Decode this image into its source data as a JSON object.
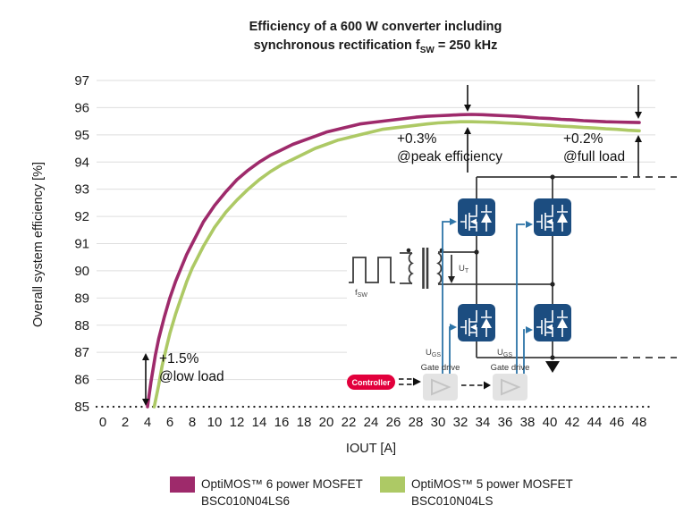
{
  "title": {
    "line1": "Efficiency of a 600 W converter including",
    "line2_pre": "synchronous rectification f",
    "line2_sub": "SW",
    "line2_post": " = 250 kHz"
  },
  "colors": {
    "optimos6": "#9E2A6B",
    "optimos5": "#ADC965",
    "mosfet_navy": "#1C4D80",
    "gate_blue": "#2E75A8",
    "controller_red": "#E2003C",
    "wire": "#3C3C3C",
    "grid": "#DEDEDE",
    "text": "#1A1A1A"
  },
  "chart_data": {
    "type": "line",
    "title": "Efficiency of a 600 W converter including synchronous rectification fSW = 250 kHz",
    "xlabel": "IOUT [A]",
    "ylabel": "Overall system efficiency [%]",
    "xlim": [
      0,
      48
    ],
    "ylim": [
      85,
      97
    ],
    "x_ticks": [
      0,
      2,
      4,
      6,
      8,
      10,
      12,
      14,
      16,
      18,
      20,
      22,
      24,
      26,
      28,
      30,
      32,
      34,
      36,
      38,
      40,
      42,
      44,
      46,
      48
    ],
    "y_ticks": [
      85,
      86,
      87,
      88,
      89,
      90,
      91,
      92,
      93,
      94,
      95,
      96,
      97
    ],
    "grid": "horizontal gridlines; dotted baseline at 85",
    "legend_position": "bottom",
    "series": [
      {
        "name": "OptiMOS™ 6 power MOSFET BSC010N04LS6",
        "color": "#9E2A6B",
        "points": [
          [
            4,
            85
          ],
          [
            4.3,
            85.9
          ],
          [
            4.7,
            86.9
          ],
          [
            5,
            87.5
          ],
          [
            5.5,
            88.3
          ],
          [
            6,
            89
          ],
          [
            6.5,
            89.6
          ],
          [
            7,
            90.1
          ],
          [
            7.5,
            90.6
          ],
          [
            8,
            91
          ],
          [
            9,
            91.8
          ],
          [
            10,
            92.4
          ],
          [
            11,
            92.9
          ],
          [
            12,
            93.35
          ],
          [
            13,
            93.7
          ],
          [
            14,
            94
          ],
          [
            15,
            94.25
          ],
          [
            16,
            94.45
          ],
          [
            17,
            94.65
          ],
          [
            18,
            94.8
          ],
          [
            19,
            94.95
          ],
          [
            20,
            95.1
          ],
          [
            21,
            95.2
          ],
          [
            22,
            95.3
          ],
          [
            23,
            95.4
          ],
          [
            24,
            95.45
          ],
          [
            25,
            95.5
          ],
          [
            26,
            95.55
          ],
          [
            27,
            95.6
          ],
          [
            28,
            95.65
          ],
          [
            29,
            95.68
          ],
          [
            30,
            95.7
          ],
          [
            31,
            95.72
          ],
          [
            32,
            95.74
          ],
          [
            33,
            95.75
          ],
          [
            34,
            95.74
          ],
          [
            35,
            95.72
          ],
          [
            36,
            95.7
          ],
          [
            37,
            95.68
          ],
          [
            38,
            95.65
          ],
          [
            39,
            95.62
          ],
          [
            40,
            95.6
          ],
          [
            41,
            95.57
          ],
          [
            42,
            95.55
          ],
          [
            43,
            95.52
          ],
          [
            44,
            95.5
          ],
          [
            45,
            95.48
          ],
          [
            46,
            95.47
          ],
          [
            47,
            95.46
          ],
          [
            48,
            95.45
          ]
        ]
      },
      {
        "name": "OptiMOS™ 5 power MOSFET BSC010N04LS",
        "color": "#ADC965",
        "points": [
          [
            4.6,
            85
          ],
          [
            5,
            85.8
          ],
          [
            5.3,
            86.5
          ],
          [
            5.7,
            87.2
          ],
          [
            6,
            87.7
          ],
          [
            6.5,
            88.4
          ],
          [
            7,
            89
          ],
          [
            7.5,
            89.6
          ],
          [
            8,
            90.1
          ],
          [
            9,
            90.9
          ],
          [
            10,
            91.6
          ],
          [
            11,
            92.15
          ],
          [
            12,
            92.6
          ],
          [
            13,
            93
          ],
          [
            14,
            93.35
          ],
          [
            15,
            93.65
          ],
          [
            16,
            93.9
          ],
          [
            17,
            94.1
          ],
          [
            18,
            94.3
          ],
          [
            19,
            94.5
          ],
          [
            20,
            94.65
          ],
          [
            21,
            94.8
          ],
          [
            22,
            94.9
          ],
          [
            23,
            95
          ],
          [
            24,
            95.1
          ],
          [
            25,
            95.2
          ],
          [
            26,
            95.25
          ],
          [
            27,
            95.3
          ],
          [
            28,
            95.35
          ],
          [
            29,
            95.4
          ],
          [
            30,
            95.44
          ],
          [
            31,
            95.46
          ],
          [
            32,
            95.48
          ],
          [
            33,
            95.48
          ],
          [
            34,
            95.47
          ],
          [
            35,
            95.46
          ],
          [
            36,
            95.44
          ],
          [
            37,
            95.42
          ],
          [
            38,
            95.4
          ],
          [
            39,
            95.37
          ],
          [
            40,
            95.35
          ],
          [
            41,
            95.32
          ],
          [
            42,
            95.3
          ],
          [
            43,
            95.27
          ],
          [
            44,
            95.25
          ],
          [
            45,
            95.22
          ],
          [
            46,
            95.2
          ],
          [
            47,
            95.17
          ],
          [
            48,
            95.15
          ]
        ]
      }
    ],
    "annotations": [
      {
        "text": "+1.5% @low load",
        "at": "x=4 A, arrow between 85% and 86.9%"
      },
      {
        "text": "+0.3% @peak efficiency",
        "at": "x≈32.5 A, arrows between the two curves at peak"
      },
      {
        "text": "+0.2% @full load",
        "at": "x=48 A, arrows between the two curves"
      }
    ]
  },
  "annotations": {
    "low": {
      "line1": "+1.5%",
      "line2": "@low load"
    },
    "peak": {
      "line1": "+0.3%",
      "line2": "@peak efficiency"
    },
    "full": {
      "line1": "+0.2%",
      "line2": "@full load"
    }
  },
  "legend": [
    {
      "label": "OptiMOS™ 6 power MOSFET",
      "sublabel": "BSC010N04LS6",
      "color": "#9E2A6B"
    },
    {
      "label": "OptiMOS™ 5 power MOSFET",
      "sublabel": "BSC010N04LS",
      "color": "#ADC965"
    }
  ],
  "inset": {
    "fsw_pre": "f",
    "fsw_sub": "SW",
    "ut_pre": "U",
    "ut_sub": "T",
    "ugs_pre": "U",
    "ugs_sub": "GS",
    "gate_drive": "Gate drive",
    "controller": "Controller"
  }
}
